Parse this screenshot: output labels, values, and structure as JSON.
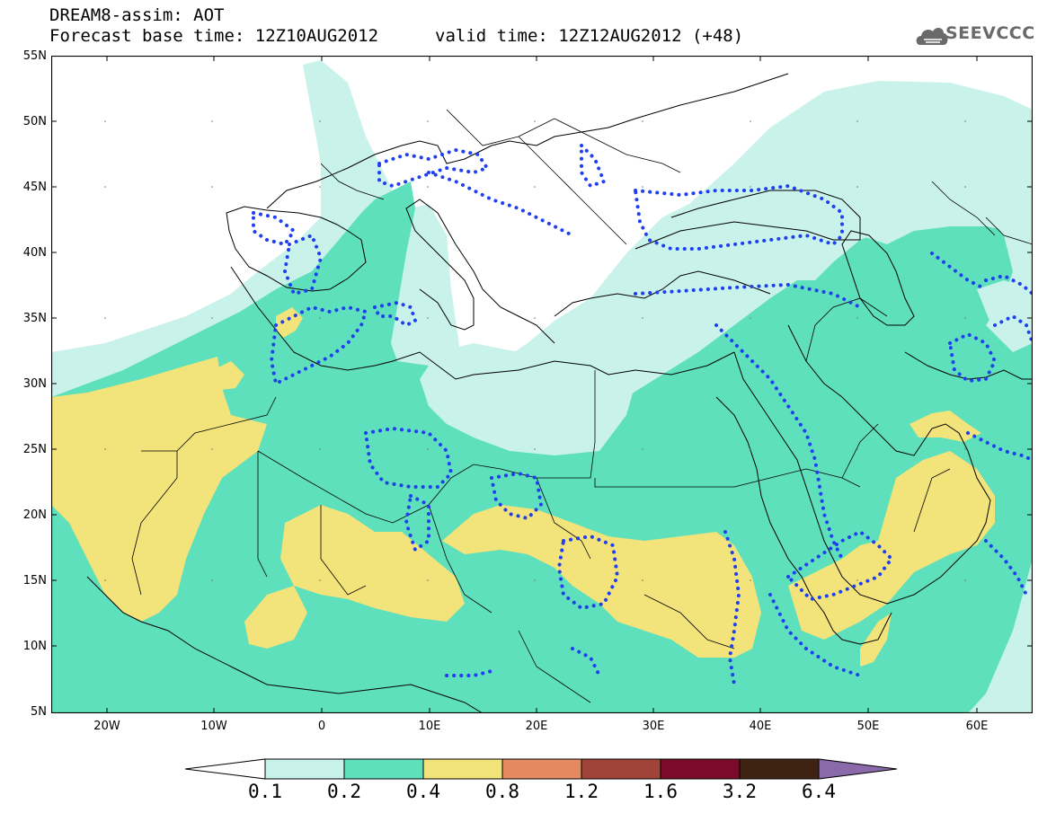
{
  "header": {
    "title": "DREAM8-assim: AOT",
    "base_time": "Forecast base time: 12Z10AUG2012",
    "valid_time": "valid time: 12Z12AUG2012 (+48)",
    "logo_text": "SEEVCCC"
  },
  "map": {
    "lat_ticks": [
      "55N",
      "50N",
      "45N",
      "40N",
      "35N",
      "30N",
      "25N",
      "20N",
      "15N",
      "10N",
      "5N"
    ],
    "lon_ticks": [
      "20W",
      "10W",
      "0",
      "10E",
      "20E",
      "30E",
      "40E",
      "50E",
      "60E"
    ],
    "lat_range": [
      5,
      55
    ],
    "lon_range": [
      -25,
      65
    ],
    "layers": [
      "aot-field-0.1-0.2",
      "aot-field-0.2-0.4",
      "aot-field-0.4-0.8",
      "coastlines",
      "borders",
      "dotted-contours"
    ]
  },
  "colorbar": {
    "labels": [
      "0.1",
      "0.2",
      "0.4",
      "0.8",
      "1.2",
      "1.6",
      "3.2",
      "6.4"
    ],
    "colors": [
      "#c8f2ea",
      "#5ee0bc",
      "#f2e37a",
      "#e38a60",
      "#a04338",
      "#7a0b2a",
      "#3e2313",
      "#8a6aa8"
    ],
    "under_color": "#ffffff"
  },
  "colors": {
    "low": "#c8f2ea",
    "mid": "#5ee0bc",
    "high": "#f2e37a",
    "contour": "#1f3ff0"
  }
}
